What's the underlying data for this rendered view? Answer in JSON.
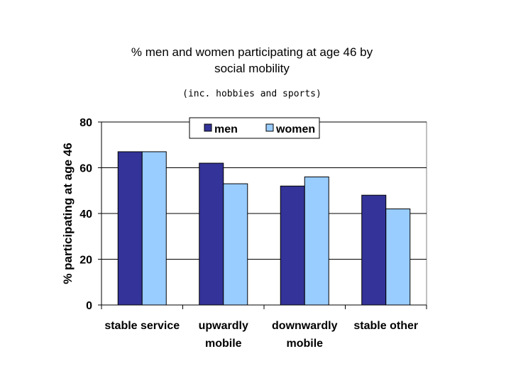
{
  "chart_data": {
    "type": "bar",
    "title": [
      "% men and women participating at age 46 by",
      "social mobility"
    ],
    "subtitle": "(inc. hobbies and sports)",
    "ylabel": "% participating at age 46",
    "xlabel": "",
    "ylim": [
      0,
      80
    ],
    "yticks": [
      "0",
      "20",
      "40",
      "60",
      "80"
    ],
    "categories": [
      [
        "stable service"
      ],
      [
        "upwardly",
        "mobile"
      ],
      [
        "downwardly",
        "mobile"
      ],
      [
        "stable other"
      ]
    ],
    "series": [
      {
        "name": "men",
        "color": "#333399",
        "values": [
          67,
          62,
          52,
          48
        ]
      },
      {
        "name": "women",
        "color": "#99ccff",
        "values": [
          67,
          53,
          56,
          42
        ]
      }
    ],
    "grid": true,
    "legend_position": "top"
  }
}
